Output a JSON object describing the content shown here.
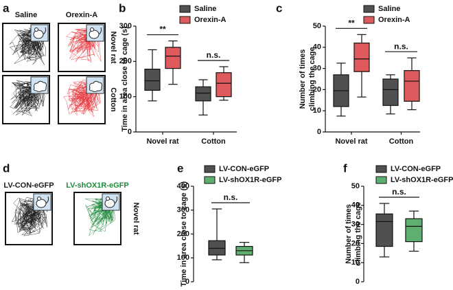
{
  "track_panels": [
    {
      "panel": "a",
      "columns": [
        "Saline",
        "Orexin-A"
      ],
      "rows": [
        "Novel rat",
        "Cotton"
      ],
      "colors": [
        "#1a1a1a",
        "#e8343a"
      ]
    },
    {
      "panel": "d",
      "columns": [
        "LV-CON-eGFP",
        "LV-shOX1R-eGFP"
      ],
      "rows": [
        "Novel rat"
      ],
      "colors": [
        "#1a1a1a",
        "#1e8a3c"
      ]
    }
  ],
  "chart_data": [
    {
      "type": "box",
      "panel": "b",
      "ylabel": [
        "Time in area close to cage (s)"
      ],
      "categories": [
        "Novel rat",
        "Cotton"
      ],
      "ylim": [
        0,
        300
      ],
      "yticks": [
        0,
        100,
        200,
        300
      ],
      "annotations": [
        "**",
        "n.s."
      ],
      "series": [
        {
          "name": "Saline",
          "color": "#505050",
          "min": [
            88,
            48
          ],
          "q1": [
            118,
            88
          ],
          "median": [
            145,
            110
          ],
          "q3": [
            178,
            128
          ],
          "max": [
            233,
            148
          ]
        },
        {
          "name": "Orexin-A",
          "color": "#de5a5c",
          "min": [
            135,
            90
          ],
          "q1": [
            180,
            100
          ],
          "median": [
            215,
            138
          ],
          "q3": [
            240,
            168
          ],
          "max": [
            258,
            185
          ]
        }
      ]
    },
    {
      "type": "box",
      "panel": "c",
      "ylabel": [
        "Number of times",
        "climbing the cage"
      ],
      "categories": [
        "Novel rat",
        "Cotton"
      ],
      "ylim": [
        0,
        50
      ],
      "yticks": [
        0,
        10,
        20,
        30,
        40,
        50
      ],
      "annotations": [
        "**",
        "n.s."
      ],
      "series": [
        {
          "name": "Saline",
          "color": "#505050",
          "min": [
            7.5,
            8.5
          ],
          "q1": [
            12,
            12.5
          ],
          "median": [
            19.5,
            20
          ],
          "q3": [
            27,
            25
          ],
          "max": [
            32.5,
            27
          ]
        },
        {
          "name": "Orexin-A",
          "color": "#de5a5c",
          "min": [
            16.5,
            10.5
          ],
          "q1": [
            28.5,
            14.5
          ],
          "median": [
            34.5,
            24
          ],
          "q3": [
            42,
            29
          ],
          "max": [
            46,
            35
          ]
        }
      ]
    },
    {
      "type": "box",
      "panel": "e",
      "ylabel": [
        "Time in area close to cage (s)"
      ],
      "categories": [
        null
      ],
      "ylim": [
        0,
        400
      ],
      "yticks": [
        0,
        100,
        200,
        300,
        400
      ],
      "annotations": [
        "n.s."
      ],
      "series": [
        {
          "name": "LV-CON-eGFP",
          "color": "#505050",
          "min": [
            92
          ],
          "q1": [
            112
          ],
          "median": [
            140
          ],
          "q3": [
            172
          ],
          "max": [
            305
          ]
        },
        {
          "name": "LV-shOX1R-eGFP",
          "color": "#5fb070",
          "min": [
            80
          ],
          "q1": [
            112
          ],
          "median": [
            130
          ],
          "q3": [
            148
          ],
          "max": [
            165
          ]
        }
      ]
    },
    {
      "type": "box",
      "panel": "f",
      "ylabel": [
        "Number of times",
        "climbing the cage"
      ],
      "categories": [
        null
      ],
      "ylim": [
        0,
        50
      ],
      "yticks": [
        0,
        10,
        20,
        30,
        40,
        50
      ],
      "annotations": [
        "n.s."
      ],
      "series": [
        {
          "name": "LV-CON-eGFP",
          "color": "#505050",
          "min": [
            13
          ],
          "q1": [
            18.5
          ],
          "median": [
            31.5
          ],
          "q3": [
            35.5
          ],
          "max": [
            41
          ]
        },
        {
          "name": "LV-shOX1R-eGFP",
          "color": "#5fb070",
          "min": [
            16
          ],
          "q1": [
            21
          ],
          "median": [
            29
          ],
          "q3": [
            33
          ],
          "max": [
            37
          ]
        }
      ]
    }
  ]
}
